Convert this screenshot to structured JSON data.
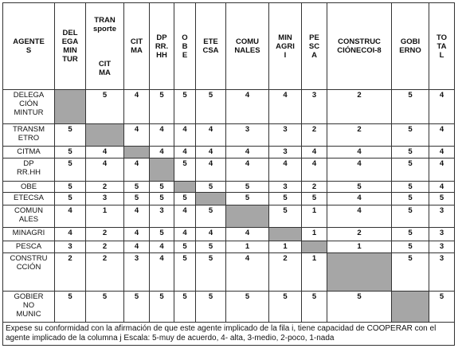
{
  "table": {
    "headers": [
      [
        "AGENTE",
        "S"
      ],
      [
        "DEL",
        "EGA",
        "MIN",
        "TUR"
      ],
      [
        "TRAN",
        "sporte",
        "",
        "",
        "",
        "CIT",
        "MA"
      ],
      [
        "CIT",
        "MA"
      ],
      [
        "DP",
        "RR.",
        "HH"
      ],
      [
        "O",
        "B",
        "E"
      ],
      [
        "ETE",
        "CSA"
      ],
      [
        "COMU",
        "NALES"
      ],
      [
        "MIN",
        "AGRI",
        "I"
      ],
      [
        "PE",
        "SC",
        "A"
      ],
      [
        "CONSTRUC",
        "CIÓNECOI-8"
      ],
      [
        "GOBI",
        "ERNO"
      ],
      [
        "TO",
        "TA",
        "L"
      ]
    ],
    "rows": [
      {
        "label": [
          "DELEGA",
          "CIÓN",
          "MINTUR"
        ],
        "values": [
          null,
          5,
          4,
          5,
          5,
          5,
          4,
          4,
          3,
          2,
          5,
          4
        ]
      },
      {
        "label": [
          "TRANSM",
          "ETRO"
        ],
        "values": [
          5,
          null,
          4,
          4,
          4,
          4,
          3,
          3,
          2,
          2,
          5,
          4
        ]
      },
      {
        "label": [
          "CITMA"
        ],
        "values": [
          5,
          4,
          null,
          4,
          4,
          4,
          4,
          3,
          4,
          4,
          5,
          4
        ]
      },
      {
        "label": [
          "DP",
          "RR.HH"
        ],
        "values": [
          5,
          4,
          4,
          null,
          5,
          4,
          4,
          4,
          4,
          4,
          5,
          4
        ]
      },
      {
        "label": [
          "OBE"
        ],
        "values": [
          5,
          2,
          5,
          5,
          null,
          5,
          5,
          3,
          2,
          5,
          5,
          4
        ]
      },
      {
        "label": [
          "ETECSA"
        ],
        "values": [
          5,
          3,
          5,
          5,
          5,
          null,
          5,
          5,
          5,
          4,
          5,
          5
        ]
      },
      {
        "label": [
          "COMUN",
          "ALES"
        ],
        "values": [
          4,
          1,
          4,
          3,
          4,
          5,
          null,
          5,
          1,
          4,
          5,
          3
        ]
      },
      {
        "label": [
          "MINAGRI"
        ],
        "values": [
          4,
          2,
          4,
          5,
          4,
          4,
          4,
          null,
          1,
          2,
          5,
          3
        ]
      },
      {
        "label": [
          "PESCA"
        ],
        "values": [
          3,
          2,
          4,
          4,
          5,
          5,
          1,
          1,
          null,
          1,
          5,
          3
        ]
      },
      {
        "label": [
          "CONSTRU",
          "CCIÓN"
        ],
        "values": [
          2,
          2,
          3,
          4,
          5,
          5,
          4,
          2,
          1,
          null,
          5,
          3
        ]
      },
      {
        "label": [
          "GOBIER",
          "NO",
          "MUNIC"
        ],
        "values": [
          5,
          5,
          5,
          5,
          5,
          5,
          5,
          5,
          5,
          5,
          null,
          5
        ]
      }
    ],
    "note": "Expese su conformidad con la afirmación de que este agente implicado de la fila i, tiene capacidad de COOPERAR con el agente implicado de la columna j Escala: 5-muy de acuerdo, 4- alta, 3-medio, 2-poco, 1-nada"
  }
}
